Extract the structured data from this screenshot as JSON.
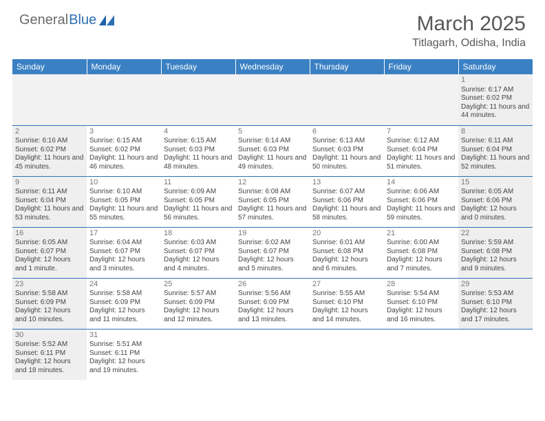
{
  "logo": {
    "text_a": "General",
    "text_b": "Blue",
    "accent_color": "#2b6fb5",
    "gray_color": "#6b6b6b"
  },
  "header": {
    "month_title": "March 2025",
    "location": "Titlagarh, Odisha, India"
  },
  "calendar": {
    "header_bg": "#3a80c3",
    "header_fg": "#ffffff",
    "border_color": "#2b6fb5",
    "shade_color": "#efefef",
    "day_headers": [
      "Sunday",
      "Monday",
      "Tuesday",
      "Wednesday",
      "Thursday",
      "Friday",
      "Saturday"
    ],
    "weeks": [
      [
        null,
        null,
        null,
        null,
        null,
        null,
        {
          "n": "1",
          "sr": "Sunrise: 6:17 AM",
          "ss": "Sunset: 6:02 PM",
          "dl": "Daylight: 11 hours and 44 minutes."
        }
      ],
      [
        {
          "n": "2",
          "sr": "Sunrise: 6:16 AM",
          "ss": "Sunset: 6:02 PM",
          "dl": "Daylight: 11 hours and 45 minutes."
        },
        {
          "n": "3",
          "sr": "Sunrise: 6:15 AM",
          "ss": "Sunset: 6:02 PM",
          "dl": "Daylight: 11 hours and 46 minutes."
        },
        {
          "n": "4",
          "sr": "Sunrise: 6:15 AM",
          "ss": "Sunset: 6:03 PM",
          "dl": "Daylight: 11 hours and 48 minutes."
        },
        {
          "n": "5",
          "sr": "Sunrise: 6:14 AM",
          "ss": "Sunset: 6:03 PM",
          "dl": "Daylight: 11 hours and 49 minutes."
        },
        {
          "n": "6",
          "sr": "Sunrise: 6:13 AM",
          "ss": "Sunset: 6:03 PM",
          "dl": "Daylight: 11 hours and 50 minutes."
        },
        {
          "n": "7",
          "sr": "Sunrise: 6:12 AM",
          "ss": "Sunset: 6:04 PM",
          "dl": "Daylight: 11 hours and 51 minutes."
        },
        {
          "n": "8",
          "sr": "Sunrise: 6:11 AM",
          "ss": "Sunset: 6:04 PM",
          "dl": "Daylight: 11 hours and 52 minutes."
        }
      ],
      [
        {
          "n": "9",
          "sr": "Sunrise: 6:11 AM",
          "ss": "Sunset: 6:04 PM",
          "dl": "Daylight: 11 hours and 53 minutes."
        },
        {
          "n": "10",
          "sr": "Sunrise: 6:10 AM",
          "ss": "Sunset: 6:05 PM",
          "dl": "Daylight: 11 hours and 55 minutes."
        },
        {
          "n": "11",
          "sr": "Sunrise: 6:09 AM",
          "ss": "Sunset: 6:05 PM",
          "dl": "Daylight: 11 hours and 56 minutes."
        },
        {
          "n": "12",
          "sr": "Sunrise: 6:08 AM",
          "ss": "Sunset: 6:05 PM",
          "dl": "Daylight: 11 hours and 57 minutes."
        },
        {
          "n": "13",
          "sr": "Sunrise: 6:07 AM",
          "ss": "Sunset: 6:06 PM",
          "dl": "Daylight: 11 hours and 58 minutes."
        },
        {
          "n": "14",
          "sr": "Sunrise: 6:06 AM",
          "ss": "Sunset: 6:06 PM",
          "dl": "Daylight: 11 hours and 59 minutes."
        },
        {
          "n": "15",
          "sr": "Sunrise: 6:05 AM",
          "ss": "Sunset: 6:06 PM",
          "dl": "Daylight: 12 hours and 0 minutes."
        }
      ],
      [
        {
          "n": "16",
          "sr": "Sunrise: 6:05 AM",
          "ss": "Sunset: 6:07 PM",
          "dl": "Daylight: 12 hours and 1 minute."
        },
        {
          "n": "17",
          "sr": "Sunrise: 6:04 AM",
          "ss": "Sunset: 6:07 PM",
          "dl": "Daylight: 12 hours and 3 minutes."
        },
        {
          "n": "18",
          "sr": "Sunrise: 6:03 AM",
          "ss": "Sunset: 6:07 PM",
          "dl": "Daylight: 12 hours and 4 minutes."
        },
        {
          "n": "19",
          "sr": "Sunrise: 6:02 AM",
          "ss": "Sunset: 6:07 PM",
          "dl": "Daylight: 12 hours and 5 minutes."
        },
        {
          "n": "20",
          "sr": "Sunrise: 6:01 AM",
          "ss": "Sunset: 6:08 PM",
          "dl": "Daylight: 12 hours and 6 minutes."
        },
        {
          "n": "21",
          "sr": "Sunrise: 6:00 AM",
          "ss": "Sunset: 6:08 PM",
          "dl": "Daylight: 12 hours and 7 minutes."
        },
        {
          "n": "22",
          "sr": "Sunrise: 5:59 AM",
          "ss": "Sunset: 6:08 PM",
          "dl": "Daylight: 12 hours and 9 minutes."
        }
      ],
      [
        {
          "n": "23",
          "sr": "Sunrise: 5:58 AM",
          "ss": "Sunset: 6:09 PM",
          "dl": "Daylight: 12 hours and 10 minutes."
        },
        {
          "n": "24",
          "sr": "Sunrise: 5:58 AM",
          "ss": "Sunset: 6:09 PM",
          "dl": "Daylight: 12 hours and 11 minutes."
        },
        {
          "n": "25",
          "sr": "Sunrise: 5:57 AM",
          "ss": "Sunset: 6:09 PM",
          "dl": "Daylight: 12 hours and 12 minutes."
        },
        {
          "n": "26",
          "sr": "Sunrise: 5:56 AM",
          "ss": "Sunset: 6:09 PM",
          "dl": "Daylight: 12 hours and 13 minutes."
        },
        {
          "n": "27",
          "sr": "Sunrise: 5:55 AM",
          "ss": "Sunset: 6:10 PM",
          "dl": "Daylight: 12 hours and 14 minutes."
        },
        {
          "n": "28",
          "sr": "Sunrise: 5:54 AM",
          "ss": "Sunset: 6:10 PM",
          "dl": "Daylight: 12 hours and 16 minutes."
        },
        {
          "n": "29",
          "sr": "Sunrise: 5:53 AM",
          "ss": "Sunset: 6:10 PM",
          "dl": "Daylight: 12 hours and 17 minutes."
        }
      ],
      [
        {
          "n": "30",
          "sr": "Sunrise: 5:52 AM",
          "ss": "Sunset: 6:11 PM",
          "dl": "Daylight: 12 hours and 18 minutes."
        },
        {
          "n": "31",
          "sr": "Sunrise: 5:51 AM",
          "ss": "Sunset: 6:11 PM",
          "dl": "Daylight: 12 hours and 19 minutes."
        },
        null,
        null,
        null,
        null,
        null
      ]
    ]
  }
}
